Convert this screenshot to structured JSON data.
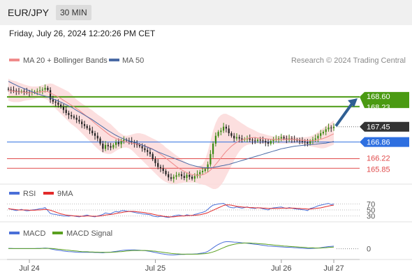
{
  "header": {
    "symbol": "EUR/JPY",
    "timeframe": "30 MIN"
  },
  "datetime": "Friday, July 26, 2024 12:20:26 PM CET",
  "legend": {
    "ma20_bb": "MA 20 + Bollinger Bands",
    "ma50": "MA 50",
    "credit": "Research © 2024 Trading Central",
    "rsi": "RSI",
    "rsi_ma": "9MA",
    "macd": "MACD",
    "macd_signal": "MACD Signal"
  },
  "colors": {
    "resistance_green": "#4a9a12",
    "support_blue": "#2e6fe0",
    "support_red": "#e04a4a",
    "last_price_bg": "#333333",
    "arrow": "#2f5f93",
    "bb_band": "#fbd9d9",
    "ma20": "#f08b8b",
    "ma50": "#4a6aa5",
    "candle_up": "#3a8a12",
    "candle_down": "#222222",
    "rsi": "#4a6fd8",
    "rsi_ma": "#e22a2a",
    "macd": "#4a6fd8",
    "macd_signal": "#5aa020"
  },
  "chart_data": {
    "type": "candlestick",
    "ylim": [
      165.4,
      169.7
    ],
    "x_ticks": [
      {
        "label": "Jul 24",
        "index": 8
      },
      {
        "label": "Jul 25",
        "index": 56
      },
      {
        "label": "Jul 26",
        "index": 104
      },
      {
        "label": "Jul 27",
        "index": 124
      }
    ],
    "price_levels": [
      {
        "value": 168.6,
        "label": "168.60",
        "kind": "resistance"
      },
      {
        "value": 168.23,
        "label": "168.23",
        "kind": "resistance"
      },
      {
        "value": 167.45,
        "label": "167.45",
        "kind": "last"
      },
      {
        "value": 166.86,
        "label": "166.86",
        "kind": "pivot"
      },
      {
        "value": 166.22,
        "label": "166.22",
        "kind": "support"
      },
      {
        "value": 165.85,
        "label": "165.85",
        "kind": "support"
      }
    ],
    "close": [
      168.88,
      168.86,
      168.84,
      168.82,
      168.8,
      168.82,
      168.8,
      168.78,
      168.76,
      168.78,
      168.8,
      168.82,
      168.85,
      168.88,
      168.95,
      168.86,
      168.5,
      168.42,
      168.38,
      168.3,
      168.22,
      168.1,
      167.98,
      167.9,
      167.85,
      167.8,
      167.72,
      167.65,
      167.55,
      167.48,
      167.4,
      167.3,
      167.2,
      167.1,
      167.0,
      166.8,
      166.6,
      166.75,
      166.7,
      166.65,
      166.75,
      166.85,
      166.78,
      166.9,
      166.95,
      166.92,
      166.9,
      166.85,
      166.8,
      166.75,
      166.7,
      166.62,
      166.55,
      166.48,
      166.4,
      166.2,
      166.05,
      165.9,
      165.85,
      165.75,
      165.62,
      165.5,
      165.45,
      165.52,
      165.58,
      165.62,
      165.55,
      165.48,
      165.6,
      165.52,
      165.45,
      165.55,
      165.62,
      165.7,
      165.75,
      165.82,
      166.0,
      166.4,
      166.8,
      167.1,
      167.25,
      167.3,
      167.45,
      167.38,
      167.2,
      167.1,
      167.0,
      167.05,
      167.0,
      166.95,
      166.98,
      167.0,
      166.95,
      166.92,
      166.9,
      166.95,
      166.92,
      166.9,
      166.85,
      166.8,
      166.9,
      166.95,
      166.98,
      167.0,
      167.05,
      167.0,
      166.95,
      167.0,
      166.98,
      166.95,
      166.92,
      166.9,
      166.88,
      166.85,
      166.8,
      166.9,
      166.95,
      167.0,
      167.1,
      167.2,
      167.25,
      167.35,
      167.42,
      167.4,
      167.45
    ],
    "ma20": [
      168.85,
      168.83,
      168.82,
      168.8,
      168.79,
      168.79,
      168.78,
      168.77,
      168.76,
      168.76,
      168.77,
      168.78,
      168.79,
      168.8,
      168.81,
      168.8,
      168.75,
      168.7,
      168.65,
      168.6,
      168.54,
      168.47,
      168.41,
      168.34,
      168.28,
      168.22,
      168.15,
      168.08,
      168.0,
      167.92,
      167.84,
      167.76,
      167.67,
      167.58,
      167.5,
      167.42,
      167.34,
      167.26,
      167.18,
      167.1,
      167.05,
      167.0,
      166.96,
      166.92,
      166.88,
      166.86,
      166.84,
      166.82,
      166.8,
      166.78,
      166.76,
      166.74,
      166.71,
      166.68,
      166.64,
      166.59,
      166.53,
      166.46,
      166.39,
      166.32,
      166.24,
      166.16,
      166.08,
      166.0,
      165.92,
      165.85,
      165.79,
      165.73,
      165.68,
      165.64,
      165.61,
      165.59,
      165.58,
      165.58,
      165.6,
      165.64,
      165.7,
      165.78,
      165.88,
      166.0,
      166.12,
      166.25,
      166.38,
      166.5,
      166.6,
      166.7,
      166.78,
      166.85,
      166.9,
      166.94,
      166.97,
      167.0,
      167.02,
      167.03,
      167.03,
      167.02,
      167.01,
      167.0,
      166.99,
      166.98,
      166.97,
      166.96,
      166.96,
      166.96,
      166.96,
      166.97,
      166.97,
      166.97,
      166.97,
      166.96,
      166.95,
      166.94,
      166.93,
      166.92,
      166.91,
      166.91,
      166.91,
      166.92,
      166.94,
      166.97,
      167.0,
      167.04,
      167.08,
      167.13,
      167.18
    ],
    "bb_upper": [
      169.3,
      169.25,
      169.22,
      169.2,
      169.15,
      169.12,
      169.08,
      169.05,
      169.02,
      169.0,
      169.0,
      169.0,
      169.02,
      169.05,
      169.08,
      169.1,
      169.12,
      169.1,
      169.05,
      169.0,
      168.95,
      168.9,
      168.85,
      168.8,
      168.7,
      168.6,
      168.5,
      168.42,
      168.35,
      168.28,
      168.22,
      168.15,
      168.08,
      168.0,
      167.92,
      167.85,
      167.78,
      167.7,
      167.62,
      167.55,
      167.45,
      167.35,
      167.25,
      167.18,
      167.12,
      167.1,
      167.12,
      167.15,
      167.18,
      167.2,
      167.2,
      167.18,
      167.15,
      167.1,
      167.05,
      167.0,
      166.95,
      166.9,
      166.82,
      166.75,
      166.65,
      166.58,
      166.5,
      166.42,
      166.35,
      166.28,
      166.2,
      166.12,
      166.05,
      166.0,
      165.95,
      165.92,
      165.92,
      165.95,
      166.0,
      166.2,
      166.5,
      166.9,
      167.3,
      167.6,
      167.8,
      167.9,
      167.95,
      167.95,
      167.9,
      167.85,
      167.8,
      167.72,
      167.65,
      167.58,
      167.52,
      167.45,
      167.4,
      167.35,
      167.3,
      167.25,
      167.2,
      167.18,
      167.15,
      167.12,
      167.1,
      167.08,
      167.08,
      167.1,
      167.12,
      167.12,
      167.12,
      167.1,
      167.08,
      167.06,
      167.05,
      167.04,
      167.04,
      167.05,
      167.06,
      167.08,
      167.12,
      167.18,
      167.25,
      167.32,
      167.4,
      167.48,
      167.55,
      167.62,
      167.7
    ],
    "bb_lower": [
      168.45,
      168.42,
      168.4,
      168.4,
      168.4,
      168.42,
      168.45,
      168.47,
      168.48,
      168.5,
      168.52,
      168.55,
      168.56,
      168.55,
      168.52,
      168.48,
      168.35,
      168.25,
      168.15,
      168.05,
      167.95,
      167.85,
      167.75,
      167.65,
      167.55,
      167.48,
      167.4,
      167.3,
      167.2,
      167.1,
      167.0,
      166.9,
      166.8,
      166.7,
      166.6,
      166.52,
      166.45,
      166.42,
      166.4,
      166.4,
      166.45,
      166.52,
      166.58,
      166.62,
      166.65,
      166.65,
      166.62,
      166.55,
      166.45,
      166.35,
      166.25,
      166.15,
      166.05,
      165.95,
      165.85,
      165.75,
      165.65,
      165.55,
      165.45,
      165.38,
      165.32,
      165.28,
      165.25,
      165.25,
      165.25,
      165.27,
      165.28,
      165.3,
      165.3,
      165.3,
      165.3,
      165.3,
      165.28,
      165.25,
      165.22,
      165.2,
      165.15,
      165.1,
      165.05,
      165.05,
      165.1,
      165.2,
      165.35,
      165.55,
      165.75,
      165.95,
      166.15,
      166.35,
      166.5,
      166.62,
      166.7,
      166.75,
      166.78,
      166.8,
      166.8,
      166.8,
      166.8,
      166.8,
      166.8,
      166.8,
      166.8,
      166.8,
      166.8,
      166.8,
      166.8,
      166.8,
      166.8,
      166.8,
      166.8,
      166.8,
      166.8,
      166.8,
      166.78,
      166.75,
      166.72,
      166.7,
      166.68,
      166.66,
      166.64,
      166.62,
      166.62,
      166.64,
      166.68,
      166.72,
      166.76
    ],
    "ma50": [
      169.2,
      169.15,
      169.1,
      169.05,
      169.0,
      168.96,
      168.92,
      168.88,
      168.84,
      168.8,
      168.76,
      168.72,
      168.69,
      168.66,
      168.63,
      168.6,
      168.56,
      168.52,
      168.48,
      168.44,
      168.4,
      168.35,
      168.3,
      168.25,
      168.2,
      168.14,
      168.08,
      168.02,
      167.96,
      167.9,
      167.84,
      167.78,
      167.72,
      167.65,
      167.58,
      167.51,
      167.44,
      167.37,
      167.3,
      167.24,
      167.18,
      167.12,
      167.07,
      167.02,
      166.98,
      166.94,
      166.91,
      166.88,
      166.85,
      166.82,
      166.78,
      166.74,
      166.7,
      166.66,
      166.62,
      166.58,
      166.53,
      166.48,
      166.44,
      166.4,
      166.36,
      166.32,
      166.28,
      166.24,
      166.2,
      166.16,
      166.12,
      166.08,
      166.04,
      166.0,
      165.97,
      165.94,
      165.92,
      165.9,
      165.88,
      165.87,
      165.87,
      165.87,
      165.88,
      165.9,
      165.92,
      165.94,
      165.96,
      165.98,
      166.0,
      166.03,
      166.06,
      166.09,
      166.12,
      166.15,
      166.18,
      166.21,
      166.24,
      166.27,
      166.3,
      166.33,
      166.36,
      166.39,
      166.42,
      166.45,
      166.48,
      166.51,
      166.54,
      166.57,
      166.6,
      166.62,
      166.64,
      166.66,
      166.68,
      166.7,
      166.71,
      166.72,
      166.73,
      166.74,
      166.75,
      166.76,
      166.77,
      166.78,
      166.79,
      166.8,
      166.81,
      166.82,
      166.84,
      166.86,
      166.88
    ],
    "rsi": [
      55,
      52,
      50,
      48,
      50,
      52,
      49,
      47,
      48,
      50,
      51,
      52,
      54,
      55,
      58,
      48,
      38,
      36,
      35,
      33,
      32,
      30,
      30,
      29,
      31,
      30,
      28,
      27,
      29,
      31,
      33,
      30,
      28,
      27,
      30,
      32,
      35,
      40,
      38,
      37,
      42,
      45,
      43,
      47,
      48,
      46,
      45,
      44,
      42,
      40,
      39,
      37,
      36,
      35,
      34,
      30,
      28,
      27,
      29,
      28,
      26,
      25,
      27,
      30,
      32,
      33,
      31,
      30,
      34,
      32,
      31,
      35,
      37,
      40,
      42,
      45,
      52,
      60,
      66,
      68,
      70,
      71,
      72,
      66,
      60,
      58,
      57,
      60,
      58,
      56,
      58,
      60,
      57,
      56,
      55,
      58,
      56,
      54,
      52,
      50,
      55,
      57,
      58,
      59,
      60,
      57,
      55,
      58,
      56,
      54,
      53,
      52,
      51,
      50,
      48,
      55,
      57,
      60,
      64,
      66,
      68,
      70,
      72,
      68,
      70
    ],
    "rsi_ma": [
      54,
      53,
      52,
      51,
      50,
      50,
      50,
      50,
      49,
      49,
      49,
      50,
      50,
      51,
      52,
      51,
      49,
      46,
      43,
      40,
      37,
      35,
      33,
      32,
      31,
      30,
      30,
      29,
      29,
      29,
      30,
      30,
      29,
      29,
      29,
      30,
      31,
      33,
      34,
      35,
      36,
      38,
      40,
      41,
      43,
      44,
      45,
      45,
      45,
      44,
      43,
      42,
      41,
      39,
      38,
      36,
      34,
      32,
      31,
      29,
      28,
      27,
      27,
      27,
      28,
      29,
      30,
      30,
      31,
      31,
      32,
      32,
      33,
      34,
      36,
      38,
      41,
      45,
      49,
      53,
      57,
      61,
      65,
      67,
      67,
      66,
      64,
      62,
      61,
      60,
      59,
      59,
      58,
      58,
      57,
      57,
      57,
      56,
      56,
      55,
      55,
      55,
      55,
      55,
      56,
      56,
      56,
      56,
      56,
      56,
      55,
      55,
      54,
      54,
      53,
      53,
      54,
      55,
      56,
      57,
      59,
      61,
      63,
      65,
      66
    ],
    "rsi_levels": [
      {
        "value": 70,
        "label": "70"
      },
      {
        "value": 50,
        "label": "50"
      },
      {
        "value": 30,
        "label": "30"
      }
    ],
    "rsi_ylim": [
      15,
      85
    ],
    "macd": [
      0.02,
      0.02,
      0.01,
      0.01,
      0.01,
      0.01,
      0.01,
      0.01,
      0.01,
      0.01,
      0.01,
      0.02,
      0.02,
      0.03,
      0.04,
      0.03,
      0.0,
      -0.03,
      -0.06,
      -0.08,
      -0.1,
      -0.12,
      -0.14,
      -0.15,
      -0.16,
      -0.17,
      -0.18,
      -0.19,
      -0.19,
      -0.19,
      -0.19,
      -0.19,
      -0.19,
      -0.2,
      -0.2,
      -0.21,
      -0.22,
      -0.2,
      -0.19,
      -0.18,
      -0.16,
      -0.14,
      -0.12,
      -0.1,
      -0.08,
      -0.07,
      -0.06,
      -0.06,
      -0.06,
      -0.07,
      -0.08,
      -0.09,
      -0.1,
      -0.12,
      -0.14,
      -0.17,
      -0.2,
      -0.23,
      -0.26,
      -0.28,
      -0.3,
      -0.32,
      -0.33,
      -0.33,
      -0.32,
      -0.31,
      -0.3,
      -0.3,
      -0.29,
      -0.29,
      -0.29,
      -0.28,
      -0.27,
      -0.25,
      -0.23,
      -0.2,
      -0.14,
      -0.05,
      0.05,
      0.15,
      0.23,
      0.3,
      0.36,
      0.38,
      0.38,
      0.37,
      0.36,
      0.35,
      0.34,
      0.32,
      0.31,
      0.3,
      0.28,
      0.26,
      0.24,
      0.23,
      0.21,
      0.19,
      0.17,
      0.15,
      0.14,
      0.13,
      0.12,
      0.11,
      0.1,
      0.09,
      0.08,
      0.08,
      0.07,
      0.06,
      0.05,
      0.04,
      0.03,
      0.02,
      0.01,
      0.01,
      0.02,
      0.03,
      0.04,
      0.06,
      0.08,
      0.1,
      0.12,
      0.13,
      0.14
    ],
    "macd_signal": [
      0.01,
      0.01,
      0.01,
      0.01,
      0.01,
      0.01,
      0.01,
      0.01,
      0.01,
      0.01,
      0.01,
      0.01,
      0.01,
      0.02,
      0.02,
      0.02,
      0.02,
      0.01,
      0.0,
      -0.02,
      -0.03,
      -0.05,
      -0.07,
      -0.08,
      -0.1,
      -0.11,
      -0.12,
      -0.14,
      -0.15,
      -0.16,
      -0.16,
      -0.17,
      -0.17,
      -0.18,
      -0.18,
      -0.19,
      -0.19,
      -0.19,
      -0.19,
      -0.19,
      -0.18,
      -0.17,
      -0.16,
      -0.15,
      -0.14,
      -0.12,
      -0.11,
      -0.1,
      -0.09,
      -0.09,
      -0.09,
      -0.09,
      -0.09,
      -0.1,
      -0.11,
      -0.12,
      -0.13,
      -0.15,
      -0.17,
      -0.19,
      -0.21,
      -0.23,
      -0.25,
      -0.26,
      -0.27,
      -0.28,
      -0.29,
      -0.29,
      -0.29,
      -0.29,
      -0.29,
      -0.29,
      -0.29,
      -0.28,
      -0.27,
      -0.26,
      -0.24,
      -0.21,
      -0.17,
      -0.12,
      -0.06,
      0.0,
      0.06,
      0.12,
      0.17,
      0.21,
      0.24,
      0.27,
      0.29,
      0.3,
      0.31,
      0.31,
      0.31,
      0.3,
      0.29,
      0.28,
      0.27,
      0.26,
      0.25,
      0.23,
      0.22,
      0.2,
      0.19,
      0.18,
      0.16,
      0.15,
      0.14,
      0.13,
      0.12,
      0.11,
      0.1,
      0.09,
      0.08,
      0.07,
      0.06,
      0.05,
      0.05,
      0.04,
      0.04,
      0.04,
      0.05,
      0.06,
      0.07,
      0.08,
      0.09
    ],
    "macd_levels": [
      {
        "value": 0,
        "label": "0"
      }
    ],
    "macd_ylim": [
      -0.5,
      0.55
    ]
  }
}
